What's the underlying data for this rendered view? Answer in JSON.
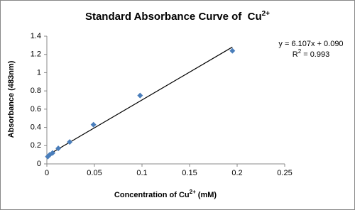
{
  "chart_data": {
    "type": "scatter",
    "title": "Standard Absorbance Curve of  Cu",
    "title_sup": "2+",
    "xlabel": "Concentration of Cu",
    "xlabel_sup": "2+",
    "xlabel_end": " (mM)",
    "ylabel": "Absorbance (483nm)",
    "x": [
      0.001,
      0.003,
      0.006,
      0.012,
      0.024,
      0.049,
      0.098,
      0.195
    ],
    "series": [
      {
        "color": "#4a7ebb",
        "values": [
          0.08,
          0.1,
          0.12,
          0.17,
          0.24,
          0.43,
          0.75,
          1.24
        ]
      }
    ],
    "xlim": [
      0,
      0.25
    ],
    "xticks": [
      0,
      0.05,
      0.1,
      0.15,
      0.2,
      0.25
    ],
    "ylim": [
      0,
      1.4
    ],
    "yticks": [
      0,
      0.2,
      0.4,
      0.6,
      0.8,
      1,
      1.2,
      1.4
    ],
    "trendline": {
      "slope": 6.107,
      "intercept": 0.09,
      "color": "#000000",
      "equation": "y = 6.107x + 0.090",
      "r2_start": "R",
      "r2_sup": "2",
      "r2_end": " = 0.993"
    }
  }
}
